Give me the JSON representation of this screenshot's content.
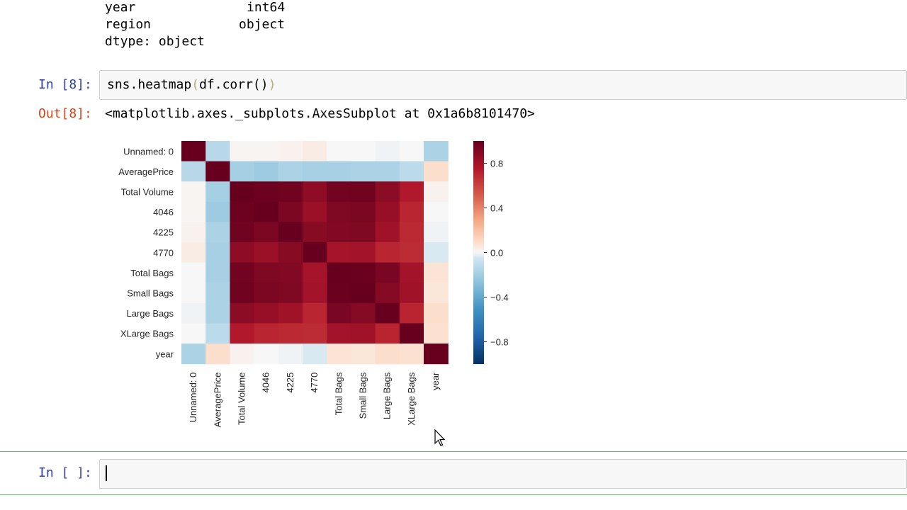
{
  "dtype_output": {
    "rows": [
      {
        "name": "year",
        "type": "int64"
      },
      {
        "name": "region",
        "type": "object"
      }
    ],
    "dtype_line": "dtype: object"
  },
  "cell8": {
    "in_prompt": "In [8]:",
    "code": "sns.heatmap",
    "code_paren_open": "(",
    "code_arg": "df.corr()",
    "code_paren_close": ")",
    "out_prompt": "Out[8]:",
    "out_text": "<matplotlib.axes._subplots.AxesSubplot at 0x1a6b8101470>"
  },
  "empty_cell": {
    "in_prompt": "In [ ]:"
  },
  "colors": {
    "prompt_in": "#303f9f",
    "prompt_out": "#d84315",
    "selected_border": "#66bb6a"
  },
  "chart_data": {
    "type": "heatmap",
    "labels": [
      "Unnamed: 0",
      "AveragePrice",
      "Total Volume",
      "4046",
      "4225",
      "4770",
      "Total Bags",
      "Small Bags",
      "Large Bags",
      "XLarge Bags",
      "year"
    ],
    "values": [
      [
        1.0,
        -0.13,
        0.01,
        0.01,
        0.02,
        0.04,
        -0.0,
        -0.0,
        -0.01,
        0.0,
        -0.17
      ],
      [
        -0.13,
        1.0,
        -0.19,
        -0.21,
        -0.17,
        -0.18,
        -0.18,
        -0.17,
        -0.17,
        -0.12,
        0.09
      ],
      [
        0.01,
        -0.19,
        1.0,
        0.98,
        0.97,
        0.87,
        0.96,
        0.97,
        0.88,
        0.75,
        0.02
      ],
      [
        0.01,
        -0.21,
        0.98,
        1.0,
        0.93,
        0.83,
        0.92,
        0.93,
        0.84,
        0.7,
        0.0
      ],
      [
        0.02,
        -0.17,
        0.97,
        0.93,
        1.0,
        0.89,
        0.91,
        0.92,
        0.81,
        0.69,
        -0.01
      ],
      [
        0.04,
        -0.18,
        0.87,
        0.83,
        0.89,
        1.0,
        0.79,
        0.8,
        0.7,
        0.68,
        -0.04
      ],
      [
        -0.0,
        -0.18,
        0.96,
        0.92,
        0.91,
        0.79,
        1.0,
        0.99,
        0.94,
        0.8,
        0.07
      ],
      [
        -0.0,
        -0.17,
        0.97,
        0.93,
        0.92,
        0.8,
        0.99,
        1.0,
        0.9,
        0.81,
        0.06
      ],
      [
        -0.01,
        -0.17,
        0.88,
        0.84,
        0.81,
        0.7,
        0.94,
        0.9,
        1.0,
        0.71,
        0.09
      ],
      [
        0.0,
        -0.12,
        0.75,
        0.7,
        0.69,
        0.68,
        0.8,
        0.81,
        0.71,
        1.0,
        0.08
      ],
      [
        -0.17,
        0.09,
        0.02,
        0.0,
        -0.01,
        -0.04,
        0.07,
        0.06,
        0.09,
        0.08,
        1.0
      ]
    ],
    "colorbar_ticks": [
      "0.8",
      "0.4",
      "0.0",
      "−0.4",
      "−0.8"
    ],
    "colorbar_tick_values": [
      0.8,
      0.4,
      0.0,
      -0.4,
      -0.8
    ],
    "vmin": -1.0,
    "vmax": 1.0,
    "colormap": "RdBu_r"
  }
}
